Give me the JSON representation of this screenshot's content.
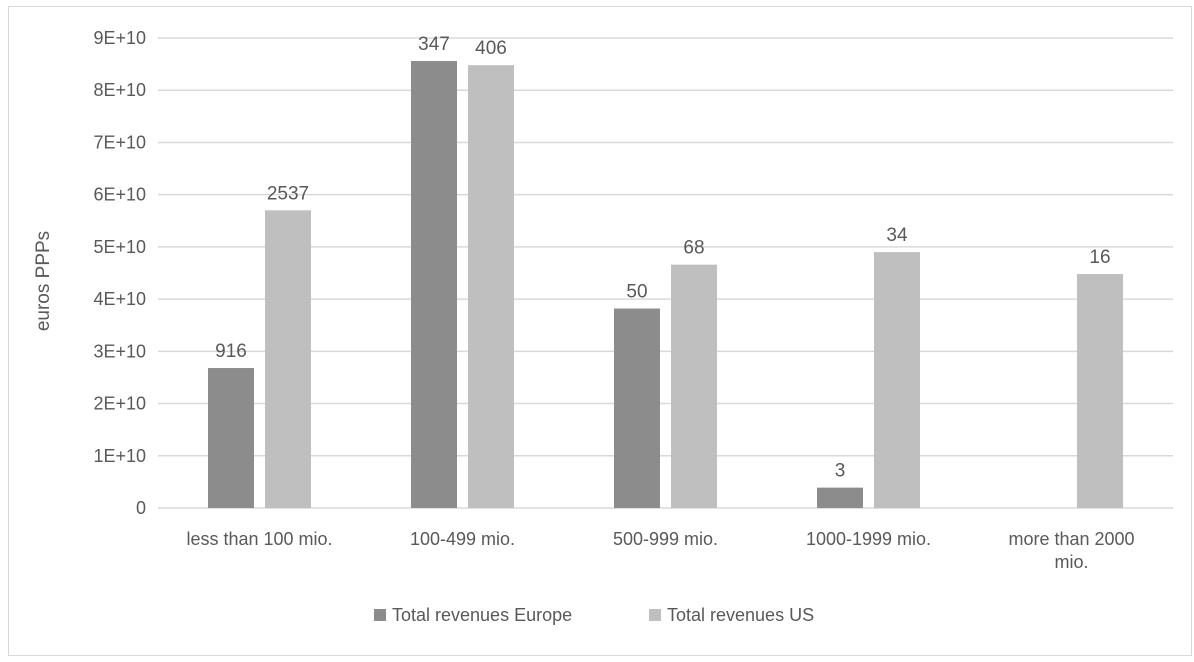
{
  "chart_data": {
    "type": "bar",
    "title": "",
    "xlabel": "",
    "ylabel": "euros PPPs",
    "ylim": [
      0,
      90000000000
    ],
    "yticks": [
      0,
      10000000000,
      20000000000,
      30000000000,
      40000000000,
      50000000000,
      60000000000,
      70000000000,
      80000000000,
      90000000000
    ],
    "ytick_labels": [
      "0",
      "1E+10",
      "2E+10",
      "3E+10",
      "4E+10",
      "5E+10",
      "6E+10",
      "7E+10",
      "8E+10",
      "9E+10"
    ],
    "grid": true,
    "legend_position": "bottom",
    "categories": [
      [
        "less than 100 mio."
      ],
      [
        "100-499 mio."
      ],
      [
        "500-999 mio."
      ],
      [
        "1000-1999 mio."
      ],
      [
        "more than 2000",
        "mio."
      ]
    ],
    "series": [
      {
        "name": "Total revenues Europe",
        "color": "#8c8c8c",
        "values": [
          26800000000,
          85600000000,
          38200000000,
          3900000000,
          null
        ],
        "data_labels": [
          "916",
          "347",
          "50",
          "3",
          ""
        ]
      },
      {
        "name": "Total revenues US",
        "color": "#bfbfbf",
        "values": [
          57000000000,
          84800000000,
          46600000000,
          49000000000,
          44800000000
        ],
        "data_labels": [
          "2537",
          "406",
          "68",
          "34",
          "16"
        ]
      }
    ]
  }
}
